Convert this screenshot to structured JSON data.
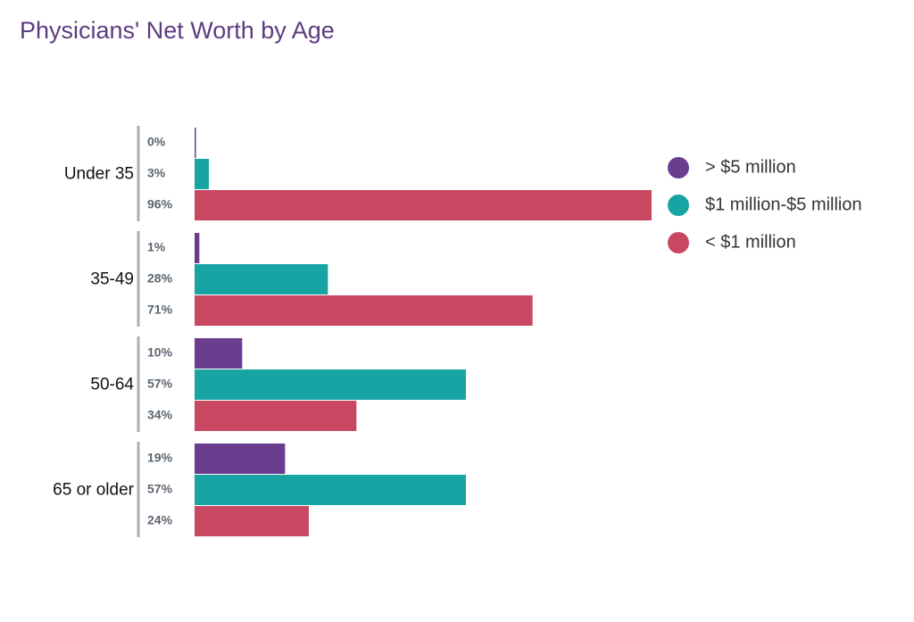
{
  "chart_data": {
    "type": "bar",
    "orientation": "horizontal",
    "title": "Physicians' Net Worth by Age",
    "categories": [
      "Under 35",
      "35-49",
      "50-64",
      "65 or older"
    ],
    "series": [
      {
        "name": "> $5 million",
        "color": "#6a3d8f",
        "values": [
          0,
          1,
          10,
          19
        ],
        "value_labels": [
          "0%",
          "1%",
          "10%",
          "19%"
        ]
      },
      {
        "name": "$1 million-$5 million",
        "color": "#17a4a3",
        "values": [
          3,
          28,
          57,
          57
        ],
        "value_labels": [
          "3%",
          "28%",
          "57%",
          "57%"
        ]
      },
      {
        "name": "< $1 million",
        "color": "#c84862",
        "values": [
          96,
          71,
          34,
          24
        ],
        "value_labels": [
          "96%",
          "71%",
          "34%",
          "24%"
        ]
      }
    ],
    "legend": "right"
  }
}
